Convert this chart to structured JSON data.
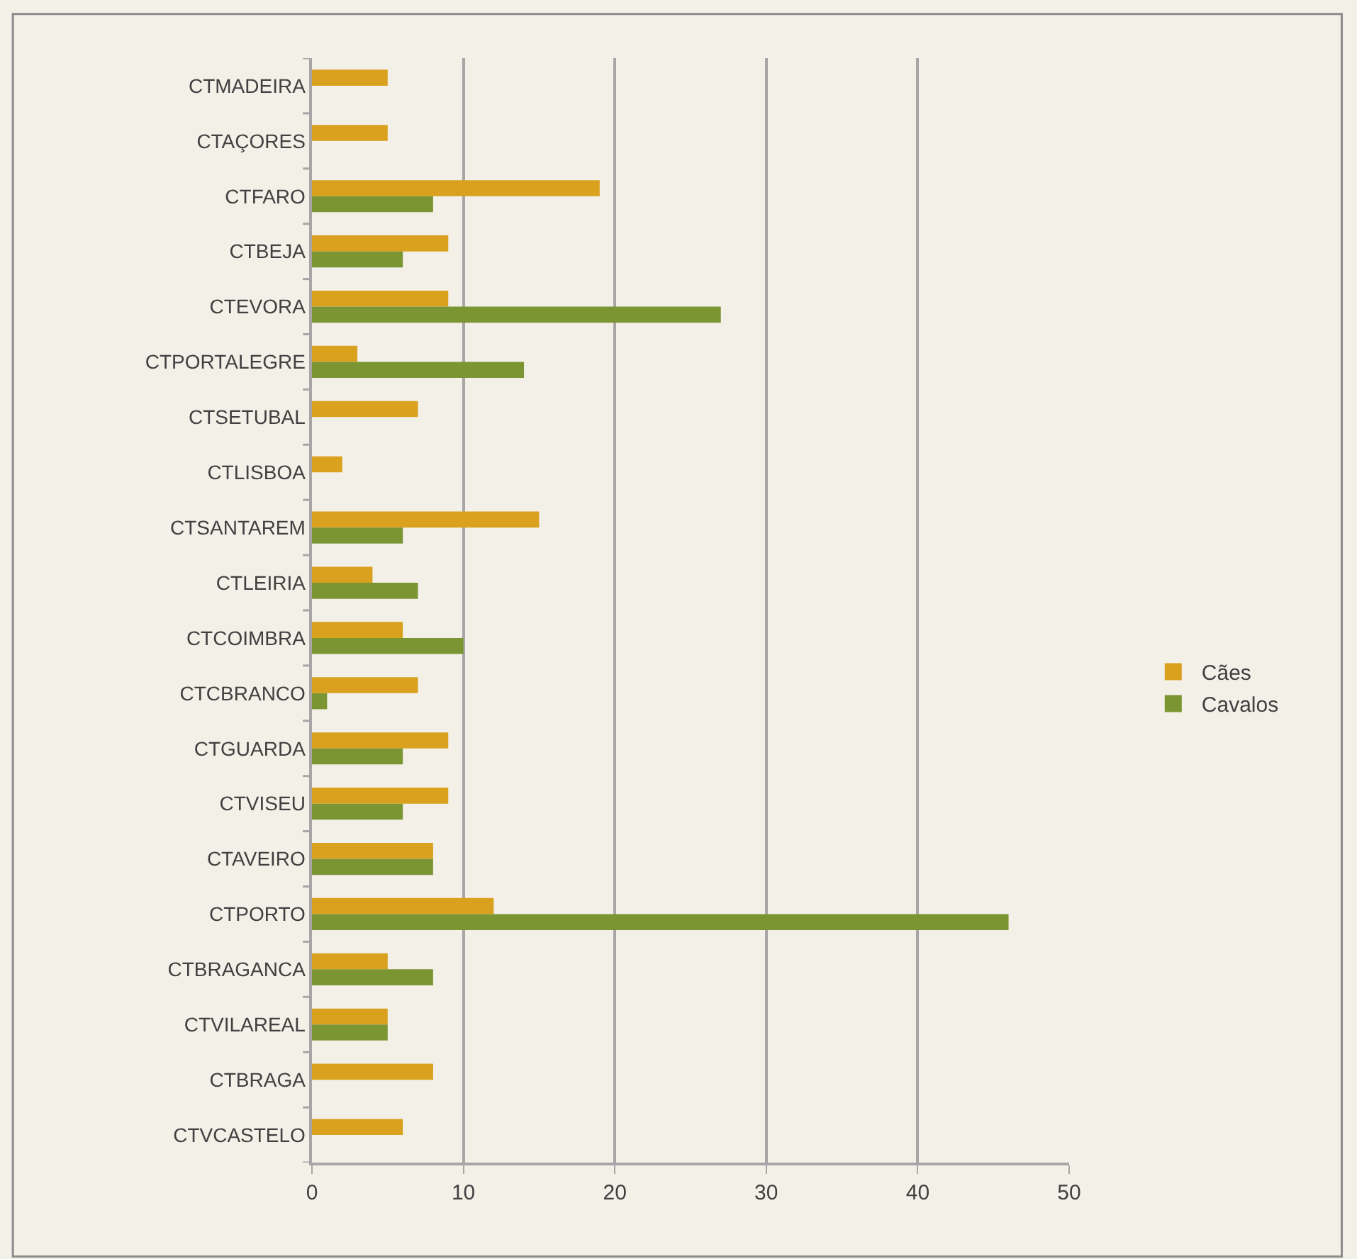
{
  "chart_data": {
    "type": "bar",
    "orientation": "horizontal",
    "categories": [
      "CTMADEIRA",
      "CTAÇORES",
      "CTFARO",
      "CTBEJA",
      "CTEVORA",
      "CTPORTALEGRE",
      "CTSETUBAL",
      "CTLISBOA",
      "CTSANTAREM",
      "CTLEIRIA",
      "CTCOIMBRA",
      "CTCBRANCO",
      "CTGUARDA",
      "CTVISEU",
      "CTAVEIRO",
      "CTPORTO",
      "CTBRAGANCA",
      "CTVILAREAL",
      "CTBRAGA",
      "CTVCASTELO"
    ],
    "series": [
      {
        "name": "Cães",
        "color": "#d9a11e",
        "values": [
          5,
          5,
          19,
          9,
          9,
          3,
          7,
          2,
          15,
          4,
          6,
          7,
          9,
          9,
          8,
          12,
          5,
          5,
          8,
          6
        ]
      },
      {
        "name": "Cavalos",
        "color": "#7b9533",
        "values": [
          null,
          null,
          8,
          6,
          27,
          14,
          null,
          null,
          6,
          7,
          10,
          1,
          6,
          6,
          8,
          46,
          8,
          5,
          null,
          null
        ]
      }
    ],
    "xlim": [
      0,
      50
    ],
    "xticks": [
      0,
      10,
      20,
      30,
      40,
      50
    ],
    "grid": "x",
    "legend": "right"
  }
}
